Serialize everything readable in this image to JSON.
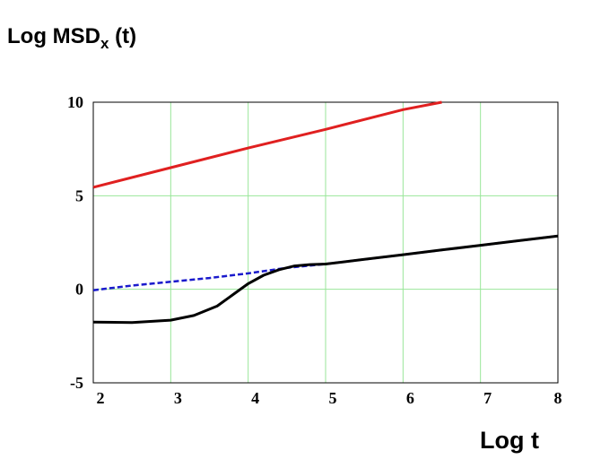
{
  "chart_data": {
    "type": "line",
    "ylabel": {
      "main": "Log MSD",
      "subscript": "x",
      "suffix": " (t)"
    },
    "xlabel": "Log t",
    "xlim": [
      2,
      8
    ],
    "ylim": [
      -5,
      10
    ],
    "x_ticks": [
      "2",
      "3",
      "4",
      "5",
      "6",
      "7",
      "8"
    ],
    "y_ticks": [
      "10",
      "5",
      "0",
      "-5"
    ],
    "grid": true,
    "grid_color": "#99e699",
    "series": [
      {
        "color": "#e02020",
        "style": "solid",
        "points": [
          [
            2.0,
            5.45
          ],
          [
            3.0,
            6.5
          ],
          [
            4.0,
            7.55
          ],
          [
            5.0,
            8.55
          ],
          [
            6.0,
            9.6
          ],
          [
            6.5,
            10.1
          ]
        ]
      },
      {
        "color": "#1a1acc",
        "style": "dashed",
        "points": [
          [
            2.0,
            -0.05
          ],
          [
            2.5,
            0.2
          ],
          [
            3.0,
            0.4
          ],
          [
            3.5,
            0.6
          ],
          [
            4.0,
            0.85
          ],
          [
            4.5,
            1.15
          ],
          [
            5.0,
            1.35
          ],
          [
            6.0,
            1.85
          ],
          [
            7.0,
            2.35
          ],
          [
            8.0,
            2.85
          ]
        ]
      },
      {
        "color": "#000000",
        "style": "solid",
        "points": [
          [
            2.0,
            -1.75
          ],
          [
            2.5,
            -1.78
          ],
          [
            3.0,
            -1.65
          ],
          [
            3.3,
            -1.4
          ],
          [
            3.6,
            -0.9
          ],
          [
            3.8,
            -0.3
          ],
          [
            4.0,
            0.3
          ],
          [
            4.2,
            0.75
          ],
          [
            4.4,
            1.05
          ],
          [
            4.6,
            1.25
          ],
          [
            4.8,
            1.32
          ],
          [
            5.0,
            1.35
          ],
          [
            5.5,
            1.6
          ],
          [
            6.0,
            1.85
          ],
          [
            6.5,
            2.1
          ],
          [
            7.0,
            2.35
          ],
          [
            7.5,
            2.6
          ],
          [
            8.0,
            2.85
          ]
        ]
      }
    ]
  }
}
